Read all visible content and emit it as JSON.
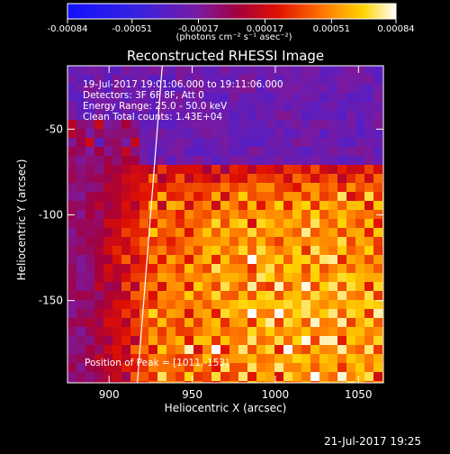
{
  "colorbar": {
    "ticks": [
      "-0.00084",
      "-0.00051",
      "-0.00017",
      "0.00017",
      "0.00051",
      "0.00084"
    ],
    "tick_values": [
      -0.00084,
      -0.00051,
      -0.00017,
      0.00017,
      0.00051,
      0.00084
    ],
    "range": [
      -0.00084,
      0.00084
    ],
    "units_label": "(photons cm⁻² s⁻¹ asec⁻²)"
  },
  "chart_data": {
    "type": "heatmap",
    "title": "Reconstructed RHESSI Image",
    "xlabel": "Heliocentric X (arcsec)",
    "ylabel": "Heliocentric Y (arcsec)",
    "xlim": [
      875,
      1065
    ],
    "ylim": [
      -198,
      -13
    ],
    "x_ticks": [
      "900",
      "950",
      "1000",
      "1050"
    ],
    "x_tick_values": [
      900,
      950,
      1000,
      1050
    ],
    "y_ticks": [
      "-50",
      "-100",
      "-150"
    ],
    "y_tick_values": [
      -50,
      -100,
      -150
    ],
    "colormap": "blue-purple-red-yellow-white",
    "annotations": [
      "19-Jul-2017 19:01:06.000 to 19:11:06.000",
      "Detectors: 3F 6F 8F, Att 0",
      "Energy Range: 25.0 - 50.0 keV",
      "Clean     Total counts: 1.43E+04"
    ],
    "peak_label": "Position of Peak = [1011,-153]",
    "peak": [
      1011,
      -153
    ],
    "limb_line": [
      [
        917,
        -198
      ],
      [
        932,
        -13
      ]
    ]
  },
  "footer": {
    "date": "21-Jul-2017 19:25"
  }
}
